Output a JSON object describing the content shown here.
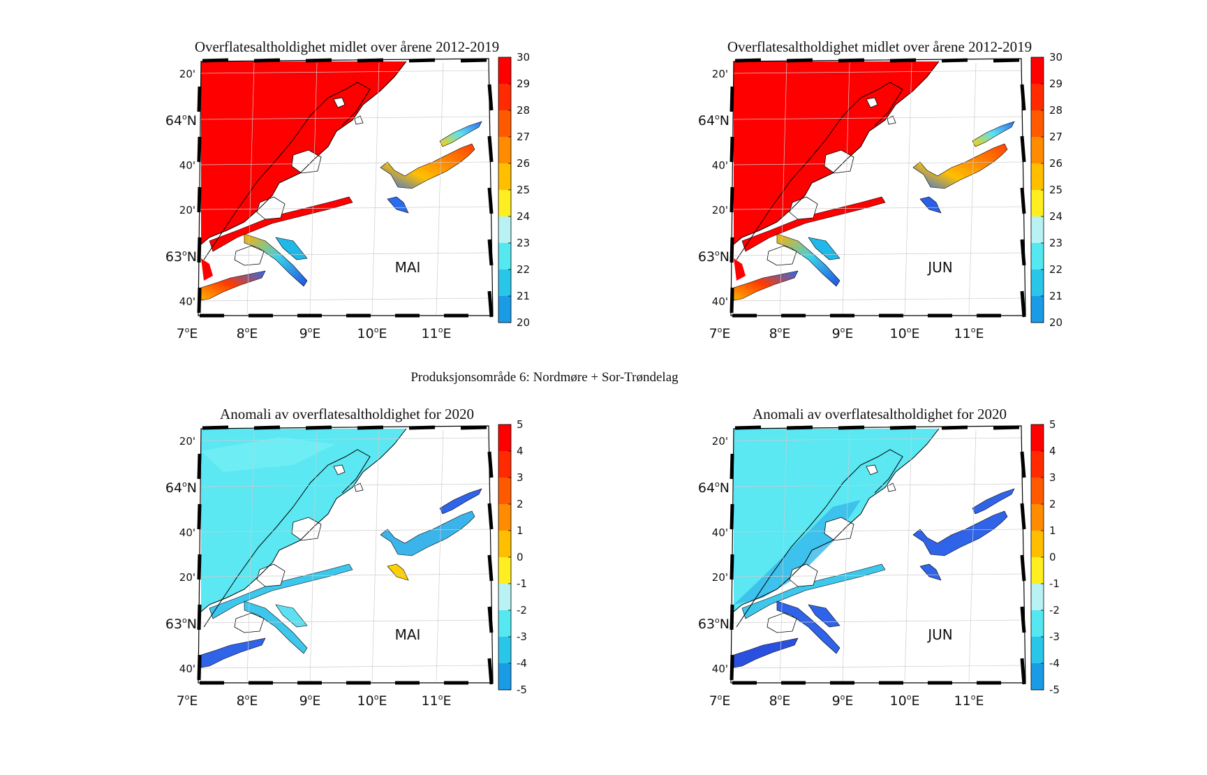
{
  "suptitle": "Produksjonsområde 6: Nordmøre + Sor-Trøndelag",
  "lon_labels": [
    {
      "deg": "7",
      "hemi": "E"
    },
    {
      "deg": "8",
      "hemi": "E"
    },
    {
      "deg": "9",
      "hemi": "E"
    },
    {
      "deg": "10",
      "hemi": "E"
    },
    {
      "deg": "11",
      "hemi": "E"
    }
  ],
  "lat_labels": [
    {
      "text": "20'",
      "deg": null
    },
    {
      "deg": "64",
      "hemi": "N"
    },
    {
      "text": "40'",
      "deg": null
    },
    {
      "text": "20'",
      "deg": null
    },
    {
      "deg": "63",
      "hemi": "N"
    },
    {
      "text": "40'",
      "deg": null
    }
  ],
  "panels": [
    {
      "title": "Overflatesaltholdighet midlet over årene 2012-2019",
      "month": "MAI",
      "kind": "mean",
      "colorbar": {
        "min": 20,
        "max": 30,
        "ticks": [
          "30",
          "29",
          "28",
          "27",
          "26",
          "25",
          "24",
          "23",
          "22",
          "21",
          "20"
        ]
      }
    },
    {
      "title": "Overflatesaltholdighet midlet over årene 2012-2019",
      "month": "JUN",
      "kind": "mean",
      "colorbar": {
        "min": 20,
        "max": 30,
        "ticks": [
          "30",
          "29",
          "28",
          "27",
          "26",
          "25",
          "24",
          "23",
          "22",
          "21",
          "20"
        ]
      }
    },
    {
      "title": "Anomali av overflatesaltholdighet for 2020",
      "month": "MAI",
      "kind": "anomaly",
      "colorbar": {
        "min": -5,
        "max": 5,
        "ticks": [
          "5",
          "4",
          "3",
          "2",
          "1",
          "0",
          "-1",
          "-2",
          "-3",
          "-4",
          "-5"
        ]
      }
    },
    {
      "title": "Anomali av overflatesaltholdighet for 2020",
      "month": "JUN",
      "kind": "anomaly",
      "colorbar": {
        "min": -5,
        "max": 5,
        "ticks": [
          "5",
          "4",
          "3",
          "2",
          "1",
          "0",
          "-1",
          "-2",
          "-3",
          "-4",
          "-5"
        ]
      }
    }
  ],
  "colorbar_colors": [
    "#ff0000",
    "#ff2a00",
    "#ff5a00",
    "#ff8c00",
    "#ffbe00",
    "#ffee20",
    "#b8f2f2",
    "#55e8f0",
    "#29c6ea",
    "#199be6",
    "#3a6cf0"
  ],
  "colors": {
    "sea_mean": "#ff0000",
    "sea_anom_light": "#5be8f2",
    "sea_anom_dark": "#3ec7ec",
    "fjord_blue": "#2f63e8",
    "land": "#ffffff",
    "coastline": "#000000"
  }
}
